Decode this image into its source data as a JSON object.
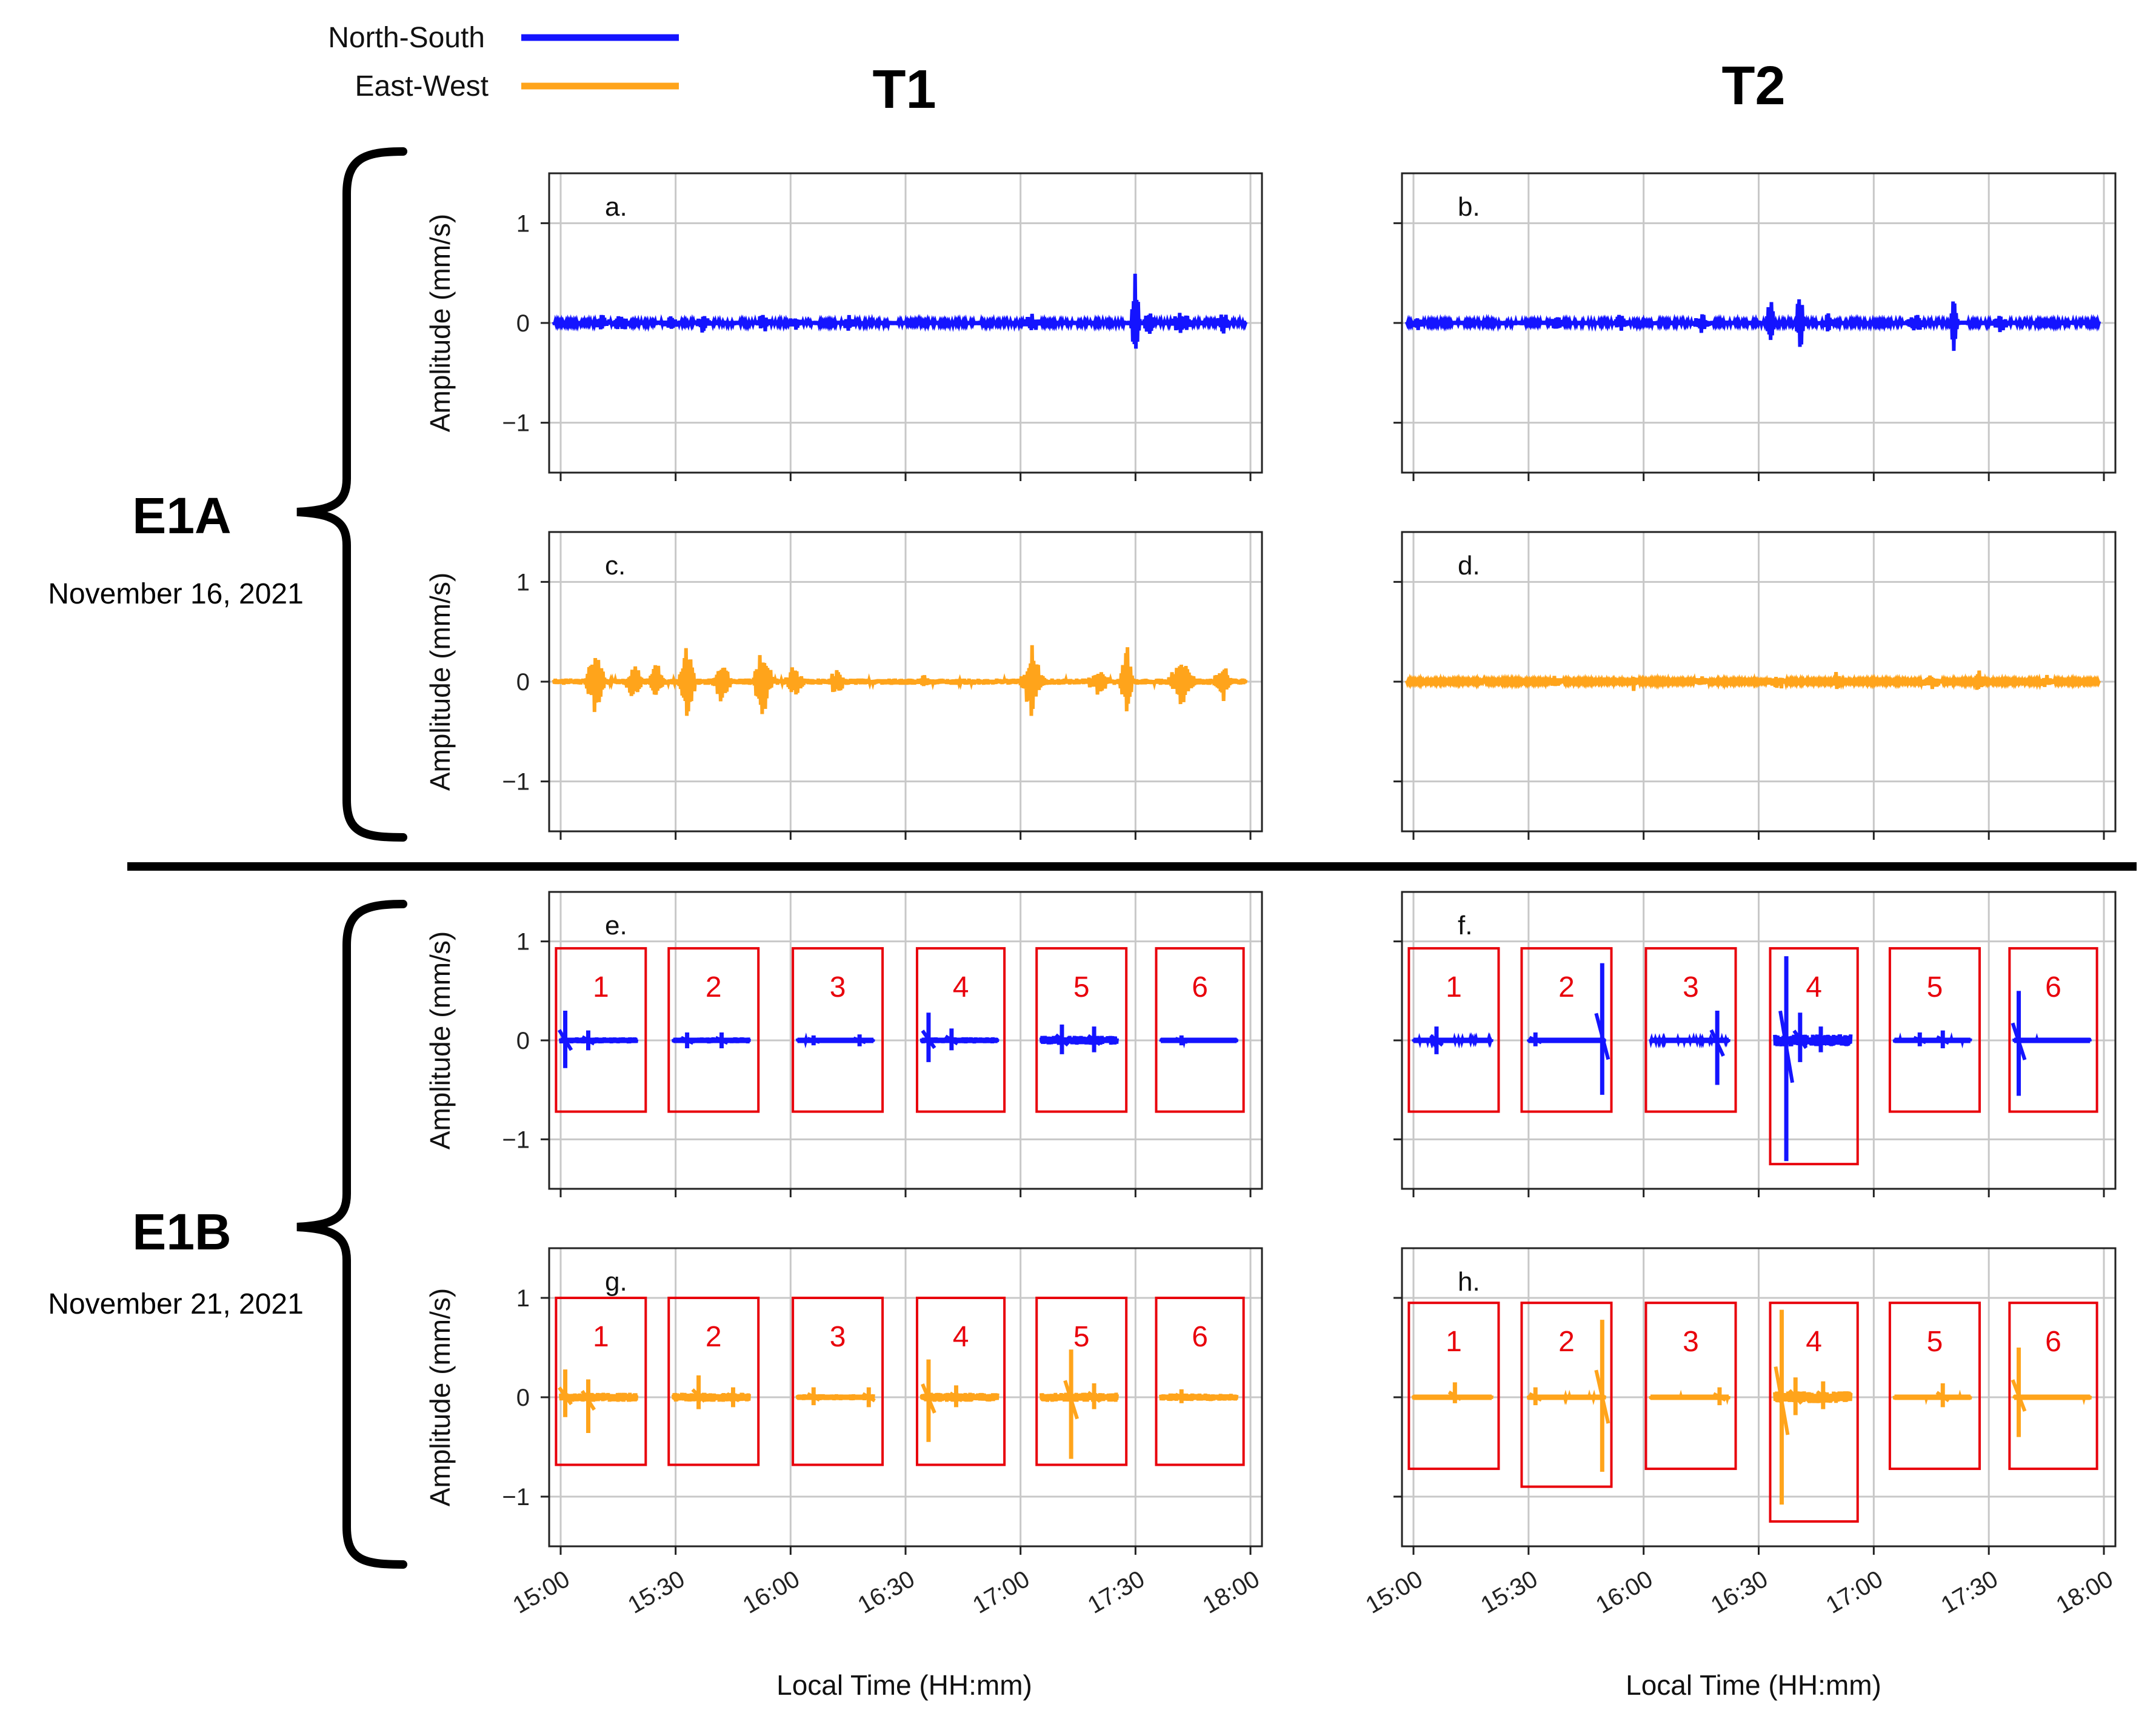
{
  "figure": {
    "legend": [
      {
        "label": "North-South",
        "color": "#1414ff"
      },
      {
        "label": "East-West",
        "color": "#ffa41b"
      }
    ],
    "column_titles": [
      "T1",
      "T2"
    ],
    "groups": [
      {
        "name": "E1A",
        "date": "November 16, 2021"
      },
      {
        "name": "E1B",
        "date": "November 21, 2021"
      }
    ],
    "xlabel": "Local Time (HH:mm)",
    "ylabel": "Amplitude (mm/s)",
    "colors": {
      "north_south": "#1414ff",
      "east_west": "#ffa41b",
      "window_box": "#e8000b",
      "grid": "#c8c8c8"
    }
  },
  "chart_data": [
    {
      "panel": "a.",
      "type": "line",
      "component": "North-South",
      "sensor": "T1",
      "event": "E1A",
      "xlabel": "Local Time (HH:mm)",
      "ylabel": "Amplitude (mm/s)",
      "xlim": [
        14.95,
        18.05
      ],
      "ylim": [
        -1.5,
        1.5
      ],
      "xticks": [
        "15:00",
        "15:30",
        "16:00",
        "16:30",
        "17:00",
        "17:30",
        "18:00"
      ],
      "yticks": [
        -1,
        0,
        1
      ],
      "grid": true,
      "trace": {
        "t_start": 14.97,
        "t_end": 17.98,
        "noise": 0.02,
        "bursts": [
          [
            15.18,
            0.1,
            0.1
          ],
          [
            15.26,
            0.12,
            0.1
          ],
          [
            15.48,
            0.1,
            0.08
          ],
          [
            15.62,
            0.12,
            0.08
          ],
          [
            15.88,
            0.12,
            0.08
          ],
          [
            16.02,
            0.1,
            0.08
          ],
          [
            16.25,
            0.1,
            0.08
          ],
          [
            17.05,
            0.12,
            0.1
          ],
          [
            17.5,
            0.75,
            0.04
          ],
          [
            17.56,
            0.2,
            0.06
          ],
          [
            17.7,
            0.14,
            0.12
          ],
          [
            17.88,
            0.14,
            0.08
          ]
        ]
      },
      "windows": []
    },
    {
      "panel": "b.",
      "type": "line",
      "component": "North-South",
      "sensor": "T2",
      "event": "E1A",
      "xlabel": "Local Time (HH:mm)",
      "ylabel": "Amplitude (mm/s)",
      "xlim": [
        14.95,
        18.05
      ],
      "ylim": [
        -1.5,
        1.5
      ],
      "xticks": [
        "15:00",
        "15:30",
        "16:00",
        "16:30",
        "17:00",
        "17:30",
        "18:00"
      ],
      "yticks": [
        -1,
        0,
        1
      ],
      "grid": true,
      "trace": {
        "t_start": 14.97,
        "t_end": 17.98,
        "noise": 0.02,
        "bursts": [
          [
            15.02,
            0.12,
            0.06
          ],
          [
            15.62,
            0.15,
            0.06
          ],
          [
            15.9,
            0.1,
            0.1
          ],
          [
            16.25,
            0.12,
            0.1
          ],
          [
            16.55,
            0.3,
            0.05
          ],
          [
            16.68,
            0.4,
            0.05
          ],
          [
            16.8,
            0.12,
            0.06
          ],
          [
            17.18,
            0.14,
            0.1
          ],
          [
            17.35,
            0.42,
            0.04
          ],
          [
            17.55,
            0.12,
            0.1
          ]
        ]
      },
      "windows": []
    },
    {
      "panel": "c.",
      "type": "line",
      "component": "East-West",
      "sensor": "T1",
      "event": "E1A",
      "xlabel": "Local Time (HH:mm)",
      "ylabel": "Amplitude (mm/s)",
      "xlim": [
        14.95,
        18.05
      ],
      "ylim": [
        -1.5,
        1.5
      ],
      "xticks": [
        "15:00",
        "15:30",
        "16:00",
        "16:30",
        "17:00",
        "17:30",
        "18:00"
      ],
      "yticks": [
        -1,
        0,
        1
      ],
      "grid": true,
      "trace": {
        "t_start": 14.97,
        "t_end": 17.98,
        "noise": 0.03,
        "bursts": [
          [
            15.15,
            0.45,
            0.1
          ],
          [
            15.32,
            0.2,
            0.1
          ],
          [
            15.42,
            0.25,
            0.08
          ],
          [
            15.55,
            0.55,
            0.08
          ],
          [
            15.7,
            0.25,
            0.1
          ],
          [
            15.88,
            0.4,
            0.1
          ],
          [
            16.02,
            0.22,
            0.1
          ],
          [
            16.2,
            0.2,
            0.08
          ],
          [
            16.58,
            0.08,
            0.1
          ],
          [
            17.05,
            0.4,
            0.12
          ],
          [
            17.34,
            0.18,
            0.12
          ],
          [
            17.46,
            0.55,
            0.06
          ],
          [
            17.7,
            0.28,
            0.14
          ],
          [
            17.88,
            0.22,
            0.1
          ]
        ]
      },
      "windows": []
    },
    {
      "panel": "d.",
      "type": "line",
      "component": "East-West",
      "sensor": "T2",
      "event": "E1A",
      "xlabel": "Local Time (HH:mm)",
      "ylabel": "Amplitude (mm/s)",
      "xlim": [
        14.95,
        18.05
      ],
      "ylim": [
        -1.5,
        1.5
      ],
      "xticks": [
        "15:00",
        "15:30",
        "16:00",
        "16:30",
        "17:00",
        "17:30",
        "18:00"
      ],
      "yticks": [
        -1,
        0,
        1
      ],
      "grid": true,
      "trace": {
        "t_start": 14.97,
        "t_end": 17.98,
        "noise": 0.015,
        "bursts": [
          [
            15.62,
            0.08,
            0.08
          ],
          [
            15.96,
            0.12,
            0.04
          ],
          [
            16.25,
            0.08,
            0.1
          ],
          [
            16.58,
            0.1,
            0.12
          ],
          [
            16.84,
            0.15,
            0.04
          ],
          [
            17.25,
            0.1,
            0.12
          ],
          [
            17.46,
            0.16,
            0.06
          ],
          [
            17.75,
            0.08,
            0.1
          ]
        ]
      },
      "windows": []
    },
    {
      "panel": "e.",
      "type": "line",
      "component": "North-South",
      "sensor": "T1",
      "event": "E1B",
      "xlabel": "Local Time (HH:mm)",
      "ylabel": "Amplitude (mm/s)",
      "xlim": [
        14.95,
        18.05
      ],
      "ylim": [
        -1.5,
        1.5
      ],
      "xticks": [
        "15:00",
        "15:30",
        "16:00",
        "16:30",
        "17:00",
        "17:30",
        "18:00"
      ],
      "yticks": [
        -1,
        0,
        1
      ],
      "grid": true,
      "trace": null,
      "windows": [
        {
          "label": "1",
          "x0": 14.98,
          "x1": 15.37,
          "ylo": -0.72,
          "yhi": 0.93,
          "t0": 15.0,
          "t1": 15.33,
          "noise": 0.02,
          "spikes": [
            [
              15.02,
              0.3,
              -0.28
            ],
            [
              15.12,
              0.1,
              -0.1
            ]
          ]
        },
        {
          "label": "2",
          "x0": 15.47,
          "x1": 15.86,
          "ylo": -0.72,
          "yhi": 0.93,
          "t0": 15.49,
          "t1": 15.82,
          "noise": 0.02,
          "spikes": [
            [
              15.55,
              0.08,
              -0.08
            ],
            [
              15.7,
              0.08,
              -0.08
            ]
          ]
        },
        {
          "label": "3",
          "x0": 16.01,
          "x1": 16.4,
          "ylo": -0.72,
          "yhi": 0.93,
          "t0": 16.03,
          "t1": 16.36,
          "noise": 0.015,
          "spikes": [
            [
              16.1,
              0.05,
              -0.05
            ],
            [
              16.3,
              0.06,
              -0.06
            ]
          ]
        },
        {
          "label": "4",
          "x0": 16.55,
          "x1": 16.93,
          "ylo": -0.72,
          "yhi": 0.93,
          "t0": 16.57,
          "t1": 16.9,
          "noise": 0.02,
          "spikes": [
            [
              16.6,
              0.28,
              -0.22
            ],
            [
              16.7,
              0.12,
              -0.1
            ]
          ]
        },
        {
          "label": "5",
          "x0": 17.07,
          "x1": 17.46,
          "ylo": -0.72,
          "yhi": 0.93,
          "t0": 17.09,
          "t1": 17.42,
          "noise": 0.03,
          "spikes": [
            [
              17.18,
              0.16,
              -0.14
            ],
            [
              17.32,
              0.14,
              -0.12
            ]
          ]
        },
        {
          "label": "6",
          "x0": 17.59,
          "x1": 17.97,
          "ylo": -0.72,
          "yhi": 0.93,
          "t0": 17.61,
          "t1": 17.94,
          "noise": 0.015,
          "spikes": [
            [
              17.7,
              0.05,
              -0.05
            ]
          ]
        }
      ]
    },
    {
      "panel": "f.",
      "type": "line",
      "component": "North-South",
      "sensor": "T2",
      "event": "E1B",
      "xlabel": "Local Time (HH:mm)",
      "ylabel": "Amplitude (mm/s)",
      "xlim": [
        14.95,
        18.05
      ],
      "ylim": [
        -1.5,
        1.5
      ],
      "xticks": [
        "15:00",
        "15:30",
        "16:00",
        "16:30",
        "17:00",
        "17:30",
        "18:00"
      ],
      "yticks": [
        -1,
        0,
        1
      ],
      "grid": true,
      "trace": null,
      "windows": [
        {
          "label": "1",
          "x0": 14.98,
          "x1": 15.37,
          "ylo": -0.72,
          "yhi": 0.93,
          "t0": 15.0,
          "t1": 15.34,
          "noise": 0.012,
          "spikes": [
            [
              15.1,
              0.14,
              -0.14
            ]
          ]
        },
        {
          "label": "2",
          "x0": 15.47,
          "x1": 15.86,
          "ylo": -0.72,
          "yhi": 0.93,
          "t0": 15.5,
          "t1": 15.83,
          "noise": 0.015,
          "spikes": [
            [
              15.53,
              0.08,
              -0.06
            ],
            [
              15.82,
              0.78,
              -0.55
            ]
          ]
        },
        {
          "label": "3",
          "x0": 16.01,
          "x1": 16.4,
          "ylo": -0.72,
          "yhi": 0.93,
          "t0": 16.03,
          "t1": 16.37,
          "noise": 0.012,
          "spikes": [
            [
              16.32,
              0.3,
              -0.45
            ]
          ]
        },
        {
          "label": "4",
          "x0": 16.55,
          "x1": 16.93,
          "ylo": -1.25,
          "yhi": 0.93,
          "t0": 16.57,
          "t1": 16.9,
          "noise": 0.04,
          "spikes": [
            [
              16.62,
              0.85,
              -1.22
            ],
            [
              16.68,
              0.28,
              -0.22
            ],
            [
              16.77,
              0.14,
              -0.12
            ]
          ]
        },
        {
          "label": "5",
          "x0": 17.07,
          "x1": 17.46,
          "ylo": -0.72,
          "yhi": 0.93,
          "t0": 17.09,
          "t1": 17.42,
          "noise": 0.015,
          "spikes": [
            [
              17.2,
              0.08,
              -0.06
            ],
            [
              17.3,
              0.1,
              -0.08
            ]
          ]
        },
        {
          "label": "6",
          "x0": 17.59,
          "x1": 17.97,
          "ylo": -0.72,
          "yhi": 0.93,
          "t0": 17.61,
          "t1": 17.94,
          "noise": 0.015,
          "spikes": [
            [
              17.63,
              0.5,
              -0.56
            ]
          ]
        }
      ]
    },
    {
      "panel": "g.",
      "type": "line",
      "component": "East-West",
      "sensor": "T1",
      "event": "E1B",
      "xlabel": "Local Time (HH:mm)",
      "ylabel": "Amplitude (mm/s)",
      "xlim": [
        14.95,
        18.05
      ],
      "ylim": [
        -1.5,
        1.5
      ],
      "xticks": [
        "15:00",
        "15:30",
        "16:00",
        "16:30",
        "17:00",
        "17:30",
        "18:00"
      ],
      "yticks": [
        -1,
        0,
        1
      ],
      "grid": true,
      "trace": null,
      "windows": [
        {
          "label": "1",
          "x0": 14.98,
          "x1": 15.37,
          "ylo": -0.68,
          "yhi": 1.0,
          "t0": 15.0,
          "t1": 15.33,
          "noise": 0.03,
          "spikes": [
            [
              15.02,
              0.28,
              -0.2
            ],
            [
              15.12,
              0.18,
              -0.36
            ]
          ]
        },
        {
          "label": "2",
          "x0": 15.47,
          "x1": 15.86,
          "ylo": -0.68,
          "yhi": 1.0,
          "t0": 15.49,
          "t1": 15.82,
          "noise": 0.03,
          "spikes": [
            [
              15.6,
              0.22,
              -0.12
            ],
            [
              15.75,
              0.1,
              -0.1
            ]
          ]
        },
        {
          "label": "3",
          "x0": 16.01,
          "x1": 16.4,
          "ylo": -0.68,
          "yhi": 1.0,
          "t0": 16.03,
          "t1": 16.36,
          "noise": 0.02,
          "spikes": [
            [
              16.1,
              0.1,
              -0.08
            ],
            [
              16.34,
              0.1,
              -0.1
            ]
          ]
        },
        {
          "label": "4",
          "x0": 16.55,
          "x1": 16.93,
          "ylo": -0.68,
          "yhi": 1.0,
          "t0": 16.57,
          "t1": 16.9,
          "noise": 0.03,
          "spikes": [
            [
              16.6,
              0.38,
              -0.45
            ],
            [
              16.72,
              0.12,
              -0.1
            ]
          ]
        },
        {
          "label": "5",
          "x0": 17.07,
          "x1": 17.46,
          "ylo": -0.68,
          "yhi": 1.0,
          "t0": 17.09,
          "t1": 17.42,
          "noise": 0.03,
          "spikes": [
            [
              17.22,
              0.48,
              -0.62
            ],
            [
              17.32,
              0.14,
              -0.12
            ]
          ]
        },
        {
          "label": "6",
          "x0": 17.59,
          "x1": 17.97,
          "ylo": -0.68,
          "yhi": 1.0,
          "t0": 17.61,
          "t1": 17.94,
          "noise": 0.025,
          "spikes": [
            [
              17.7,
              0.08,
              -0.06
            ]
          ]
        }
      ]
    },
    {
      "panel": "h.",
      "type": "line",
      "component": "East-West",
      "sensor": "T2",
      "event": "E1B",
      "xlabel": "Local Time (HH:mm)",
      "ylabel": "Amplitude (mm/s)",
      "xlim": [
        14.95,
        18.05
      ],
      "ylim": [
        -1.5,
        1.5
      ],
      "xticks": [
        "15:00",
        "15:30",
        "16:00",
        "16:30",
        "17:00",
        "17:30",
        "18:00"
      ],
      "yticks": [
        -1,
        0,
        1
      ],
      "grid": true,
      "trace": null,
      "windows": [
        {
          "label": "1",
          "x0": 14.98,
          "x1": 15.37,
          "ylo": -0.72,
          "yhi": 0.95,
          "t0": 15.0,
          "t1": 15.34,
          "noise": 0.015,
          "spikes": [
            [
              15.18,
              0.15,
              -0.06
            ]
          ]
        },
        {
          "label": "2",
          "x0": 15.47,
          "x1": 15.86,
          "ylo": -0.9,
          "yhi": 0.95,
          "t0": 15.5,
          "t1": 15.83,
          "noise": 0.015,
          "spikes": [
            [
              15.53,
              0.1,
              -0.08
            ],
            [
              15.82,
              0.78,
              -0.75
            ]
          ]
        },
        {
          "label": "3",
          "x0": 16.01,
          "x1": 16.4,
          "ylo": -0.72,
          "yhi": 0.95,
          "t0": 16.03,
          "t1": 16.37,
          "noise": 0.015,
          "spikes": [
            [
              16.33,
              0.1,
              -0.08
            ]
          ]
        },
        {
          "label": "4",
          "x0": 16.55,
          "x1": 16.93,
          "ylo": -1.25,
          "yhi": 0.95,
          "t0": 16.57,
          "t1": 16.9,
          "noise": 0.04,
          "spikes": [
            [
              16.6,
              0.88,
              -1.08
            ],
            [
              16.66,
              0.2,
              -0.18
            ],
            [
              16.78,
              0.16,
              -0.12
            ]
          ]
        },
        {
          "label": "5",
          "x0": 17.07,
          "x1": 17.46,
          "ylo": -0.72,
          "yhi": 0.95,
          "t0": 17.09,
          "t1": 17.42,
          "noise": 0.015,
          "spikes": [
            [
              17.3,
              0.14,
              -0.1
            ]
          ]
        },
        {
          "label": "6",
          "x0": 17.59,
          "x1": 17.97,
          "ylo": -0.72,
          "yhi": 0.95,
          "t0": 17.61,
          "t1": 17.94,
          "noise": 0.015,
          "spikes": [
            [
              17.63,
              0.5,
              -0.4
            ]
          ]
        }
      ]
    }
  ]
}
